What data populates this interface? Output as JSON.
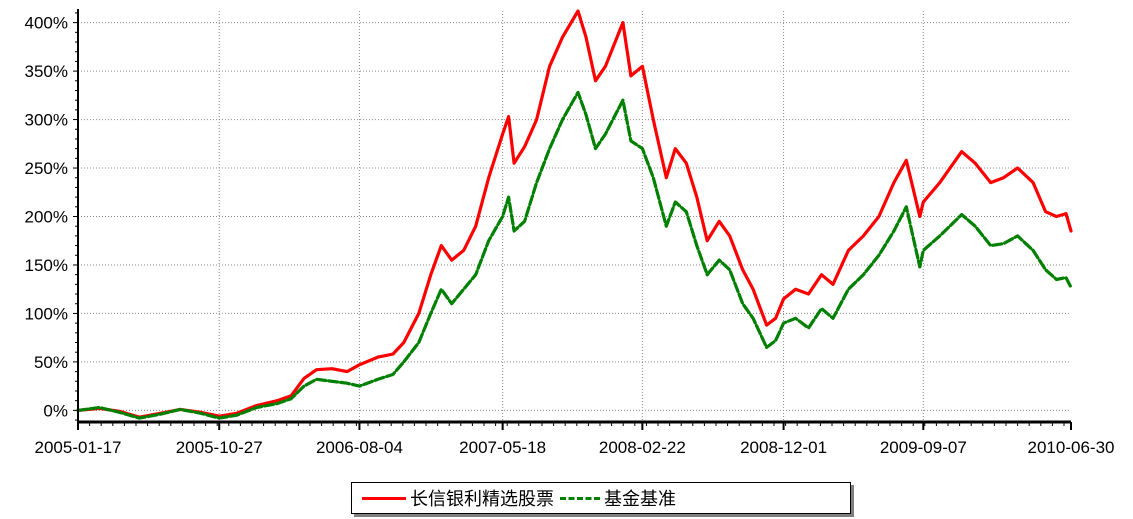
{
  "chart_data": {
    "type": "line",
    "x_ticks": [
      "2005-01-17",
      "2005-10-27",
      "2006-08-04",
      "2007-05-18",
      "2008-02-22",
      "2008-12-01",
      "2009-09-07",
      "2010-06-30"
    ],
    "y_ticks": [
      "0%",
      "50%",
      "100%",
      "150%",
      "200%",
      "250%",
      "300%",
      "350%",
      "400%"
    ],
    "ylim": [
      -12,
      412
    ],
    "y_unit": "%",
    "grid": true,
    "legend_position": "bottom",
    "series": [
      {
        "name": "长信银利精选股票",
        "color": "#ff0000",
        "style": "solid",
        "points": [
          [
            "2005-01-17",
            0
          ],
          [
            "2005-03-01",
            2
          ],
          [
            "2005-04-10",
            -1
          ],
          [
            "2005-05-20",
            -7
          ],
          [
            "2005-07-01",
            -3
          ],
          [
            "2005-08-10",
            1
          ],
          [
            "2005-09-20",
            -2
          ],
          [
            "2005-10-27",
            -6
          ],
          [
            "2005-12-01",
            -3
          ],
          [
            "2006-01-10",
            5
          ],
          [
            "2006-02-20",
            10
          ],
          [
            "2006-03-20",
            15
          ],
          [
            "2006-04-15",
            33
          ],
          [
            "2006-05-10",
            42
          ],
          [
            "2006-06-10",
            43
          ],
          [
            "2006-07-10",
            40
          ],
          [
            "2006-08-04",
            47
          ],
          [
            "2006-09-10",
            55
          ],
          [
            "2006-10-10",
            58
          ],
          [
            "2006-11-01",
            70
          ],
          [
            "2006-12-01",
            100
          ],
          [
            "2006-12-25",
            140
          ],
          [
            "2007-01-15",
            170
          ],
          [
            "2007-02-05",
            155
          ],
          [
            "2007-03-01",
            165
          ],
          [
            "2007-03-25",
            190
          ],
          [
            "2007-04-20",
            240
          ],
          [
            "2007-05-18",
            285
          ],
          [
            "2007-05-30",
            303
          ],
          [
            "2007-06-10",
            255
          ],
          [
            "2007-07-01",
            272
          ],
          [
            "2007-07-25",
            300
          ],
          [
            "2007-08-20",
            355
          ],
          [
            "2007-09-15",
            385
          ],
          [
            "2007-10-16",
            412
          ],
          [
            "2007-11-01",
            385
          ],
          [
            "2007-11-20",
            340
          ],
          [
            "2007-12-10",
            355
          ],
          [
            "2008-01-14",
            400
          ],
          [
            "2008-01-30",
            345
          ],
          [
            "2008-02-22",
            355
          ],
          [
            "2008-03-15",
            300
          ],
          [
            "2008-04-10",
            240
          ],
          [
            "2008-04-28",
            270
          ],
          [
            "2008-05-20",
            255
          ],
          [
            "2008-06-10",
            220
          ],
          [
            "2008-07-01",
            175
          ],
          [
            "2008-07-25",
            195
          ],
          [
            "2008-08-15",
            180
          ],
          [
            "2008-09-10",
            145
          ],
          [
            "2008-10-01",
            125
          ],
          [
            "2008-10-28",
            88
          ],
          [
            "2008-11-15",
            95
          ],
          [
            "2008-12-01",
            115
          ],
          [
            "2008-12-25",
            125
          ],
          [
            "2009-01-20",
            120
          ],
          [
            "2009-02-15",
            140
          ],
          [
            "2009-03-10",
            130
          ],
          [
            "2009-04-10",
            165
          ],
          [
            "2009-05-10",
            180
          ],
          [
            "2009-06-10",
            200
          ],
          [
            "2009-07-10",
            235
          ],
          [
            "2009-08-04",
            258
          ],
          [
            "2009-08-31",
            200
          ],
          [
            "2009-09-07",
            215
          ],
          [
            "2009-10-10",
            235
          ],
          [
            "2009-11-23",
            267
          ],
          [
            "2009-12-20",
            255
          ],
          [
            "2010-01-20",
            235
          ],
          [
            "2010-02-15",
            240
          ],
          [
            "2010-03-15",
            250
          ],
          [
            "2010-04-15",
            235
          ],
          [
            "2010-05-10",
            205
          ],
          [
            "2010-06-01",
            200
          ],
          [
            "2010-06-20",
            203
          ],
          [
            "2010-06-30",
            185
          ]
        ]
      },
      {
        "name": "基金基准",
        "color": "#008000",
        "style": "dashed",
        "points": [
          [
            "2005-01-17",
            0
          ],
          [
            "2005-03-01",
            3
          ],
          [
            "2005-04-10",
            -2
          ],
          [
            "2005-05-20",
            -8
          ],
          [
            "2005-07-01",
            -4
          ],
          [
            "2005-08-10",
            1
          ],
          [
            "2005-09-20",
            -3
          ],
          [
            "2005-10-27",
            -8
          ],
          [
            "2005-12-01",
            -5
          ],
          [
            "2006-01-10",
            3
          ],
          [
            "2006-02-20",
            7
          ],
          [
            "2006-03-20",
            12
          ],
          [
            "2006-04-15",
            25
          ],
          [
            "2006-05-10",
            32
          ],
          [
            "2006-06-10",
            30
          ],
          [
            "2006-07-10",
            28
          ],
          [
            "2006-08-04",
            25
          ],
          [
            "2006-09-10",
            32
          ],
          [
            "2006-10-10",
            37
          ],
          [
            "2006-11-01",
            50
          ],
          [
            "2006-12-01",
            70
          ],
          [
            "2006-12-25",
            100
          ],
          [
            "2007-01-15",
            125
          ],
          [
            "2007-02-05",
            110
          ],
          [
            "2007-03-01",
            125
          ],
          [
            "2007-03-25",
            140
          ],
          [
            "2007-04-20",
            175
          ],
          [
            "2007-05-18",
            200
          ],
          [
            "2007-05-30",
            220
          ],
          [
            "2007-06-10",
            185
          ],
          [
            "2007-07-01",
            195
          ],
          [
            "2007-07-25",
            235
          ],
          [
            "2007-08-20",
            270
          ],
          [
            "2007-09-15",
            300
          ],
          [
            "2007-10-16",
            328
          ],
          [
            "2007-11-01",
            305
          ],
          [
            "2007-11-20",
            270
          ],
          [
            "2007-12-10",
            285
          ],
          [
            "2008-01-14",
            320
          ],
          [
            "2008-01-30",
            278
          ],
          [
            "2008-02-22",
            270
          ],
          [
            "2008-03-15",
            240
          ],
          [
            "2008-04-10",
            190
          ],
          [
            "2008-04-28",
            215
          ],
          [
            "2008-05-20",
            205
          ],
          [
            "2008-06-10",
            170
          ],
          [
            "2008-07-01",
            140
          ],
          [
            "2008-07-25",
            155
          ],
          [
            "2008-08-15",
            145
          ],
          [
            "2008-09-10",
            110
          ],
          [
            "2008-10-01",
            95
          ],
          [
            "2008-10-28",
            65
          ],
          [
            "2008-11-15",
            72
          ],
          [
            "2008-12-01",
            90
          ],
          [
            "2008-12-25",
            95
          ],
          [
            "2009-01-20",
            85
          ],
          [
            "2009-02-15",
            105
          ],
          [
            "2009-03-10",
            95
          ],
          [
            "2009-04-10",
            125
          ],
          [
            "2009-05-10",
            140
          ],
          [
            "2009-06-10",
            160
          ],
          [
            "2009-07-10",
            185
          ],
          [
            "2009-08-04",
            210
          ],
          [
            "2009-08-31",
            148
          ],
          [
            "2009-09-07",
            165
          ],
          [
            "2009-10-10",
            180
          ],
          [
            "2009-11-23",
            202
          ],
          [
            "2009-12-20",
            190
          ],
          [
            "2010-01-20",
            170
          ],
          [
            "2010-02-15",
            172
          ],
          [
            "2010-03-15",
            180
          ],
          [
            "2010-04-15",
            165
          ],
          [
            "2010-05-10",
            145
          ],
          [
            "2010-06-01",
            135
          ],
          [
            "2010-06-20",
            137
          ],
          [
            "2010-06-30",
            127
          ]
        ]
      }
    ]
  }
}
